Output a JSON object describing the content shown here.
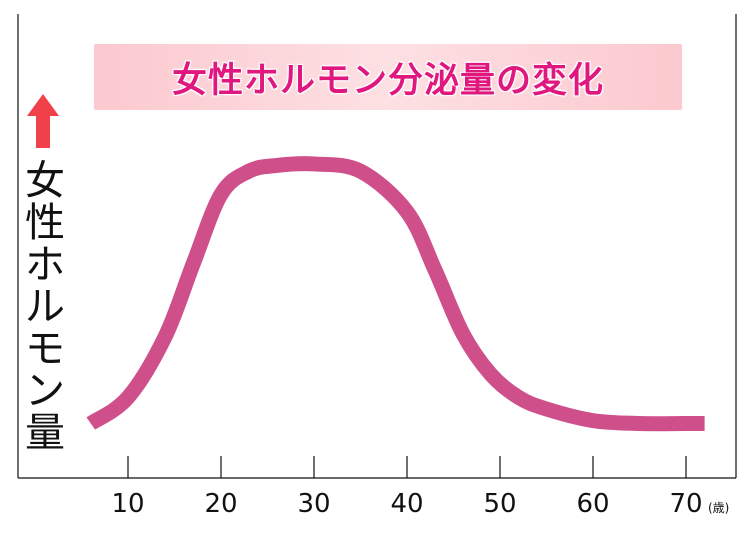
{
  "chart_data": {
    "type": "line",
    "title": "女性ホルモン分泌量の変化",
    "ylabel": "女性ホルモン量",
    "xlabel": "",
    "x_unit": "(歳)",
    "xticks": [
      10,
      20,
      30,
      40,
      50,
      60,
      70
    ],
    "xlim": [
      1,
      75
    ],
    "ylim": [
      0,
      100
    ],
    "y_ticks_shown": false,
    "grid": false,
    "legend": "none",
    "series": [
      {
        "color": "#cf4f8b",
        "x": [
          6,
          10,
          14,
          17,
          20,
          23,
          26,
          30,
          35,
          40,
          43,
          46,
          49,
          52,
          55,
          60,
          65,
          70,
          72
        ],
        "y": [
          5,
          14,
          35,
          60,
          84,
          92,
          94,
          94.5,
          92,
          78,
          58,
          36,
          22,
          14,
          10,
          6,
          5,
          5,
          5
        ]
      }
    ]
  },
  "colors": {
    "title_text": "#e0177e",
    "title_bg": "#fbc9cf",
    "arrow": "#f0404a",
    "axis": "#111111"
  },
  "icons": {
    "y_arrow": "up-arrow-icon"
  }
}
